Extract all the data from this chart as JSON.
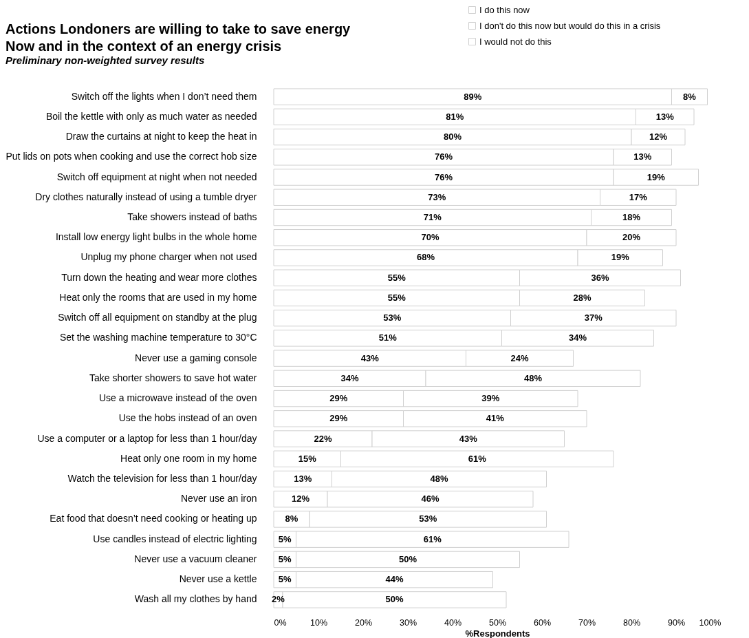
{
  "chart_data": {
    "type": "bar",
    "orientation": "horizontal",
    "stacked": true,
    "title": "Actions Londoners are willing to take to save energy",
    "subtitle": "Now and in the context of an energy crisis",
    "annotations": [
      "Preliminary non-weighted survey results"
    ],
    "xlabel": "%Respondents",
    "xlim": [
      0,
      100
    ],
    "xticks": [
      {
        "value": 0,
        "label": "0%"
      },
      {
        "value": 10,
        "label": "10%"
      },
      {
        "value": 20,
        "label": "20%"
      },
      {
        "value": 30,
        "label": "30%"
      },
      {
        "value": 40,
        "label": "40%"
      },
      {
        "value": 50,
        "label": "50%"
      },
      {
        "value": 60,
        "label": "60%"
      },
      {
        "value": 70,
        "label": "70%"
      },
      {
        "value": 80,
        "label": "80%"
      },
      {
        "value": 90,
        "label": "90%"
      },
      {
        "value": 100,
        "label": "100%"
      }
    ],
    "categories": [
      "Switch off the lights when I don’t need them",
      "Boil the kettle with only as much water as needed",
      "Draw the curtains at night to keep the heat in",
      "Put lids on pots when cooking and use the correct hob size",
      "Switch off equipment at night when not needed",
      "Dry clothes naturally instead of using a tumble dryer",
      "Take showers instead of baths",
      "Install low energy light bulbs in the whole home",
      "Unplug my phone charger when not used",
      "Turn down the heating and wear more clothes",
      "Heat only the rooms that are used in my home",
      "Switch off all equipment on standby at the plug",
      "Set the washing machine temperature to 30°C",
      "Never use a gaming console",
      "Take shorter showers to save hot water",
      "Use a microwave instead of the oven",
      "Use the hobs instead of an oven",
      "Use a computer or a laptop for less than 1 hour/day",
      "Heat only one room in my home",
      "Watch the television for less than 1 hour/day",
      "Never use an iron",
      "Eat food that doesn’t need cooking or heating up",
      "Use candles instead of electric lighting",
      "Never use a vacuum cleaner",
      "Never use a kettle",
      "Wash all my clothes by hand"
    ],
    "series": [
      {
        "name": "I do this now",
        "color": "#ffffff",
        "values": [
          89,
          81,
          80,
          76,
          76,
          73,
          71,
          70,
          68,
          55,
          55,
          53,
          51,
          43,
          34,
          29,
          29,
          22,
          15,
          13,
          12,
          8,
          5,
          5,
          5,
          2
        ],
        "value_labels": [
          "89%",
          "81%",
          "80%",
          "76%",
          "76%",
          "73%",
          "71%",
          "70%",
          "68%",
          "55%",
          "55%",
          "53%",
          "51%",
          "43%",
          "34%",
          "29%",
          "29%",
          "22%",
          "15%",
          "13%",
          "12%",
          "8%",
          "5%",
          "5%",
          "5%",
          "2%"
        ]
      },
      {
        "name": "I don't do this now but would do this in a crisis",
        "color": "#ffffff",
        "values": [
          8,
          13,
          12,
          13,
          19,
          17,
          18,
          20,
          19,
          36,
          28,
          37,
          34,
          24,
          48,
          39,
          41,
          43,
          61,
          48,
          46,
          53,
          61,
          50,
          44,
          50
        ],
        "value_labels": [
          "8%",
          "13%",
          "12%",
          "13%",
          "19%",
          "17%",
          "18%",
          "20%",
          "19%",
          "36%",
          "28%",
          "37%",
          "34%",
          "24%",
          "48%",
          "39%",
          "41%",
          "43%",
          "61%",
          "48%",
          "46%",
          "53%",
          "61%",
          "50%",
          "44%",
          "50%"
        ]
      },
      {
        "name": "I would not do this",
        "color": "#ffffff",
        "values": [
          null,
          null,
          null,
          null,
          null,
          null,
          null,
          null,
          null,
          null,
          null,
          null,
          null,
          null,
          null,
          null,
          null,
          null,
          null,
          null,
          null,
          null,
          null,
          null,
          null,
          null
        ]
      }
    ],
    "legend": "top right",
    "grid": false
  }
}
